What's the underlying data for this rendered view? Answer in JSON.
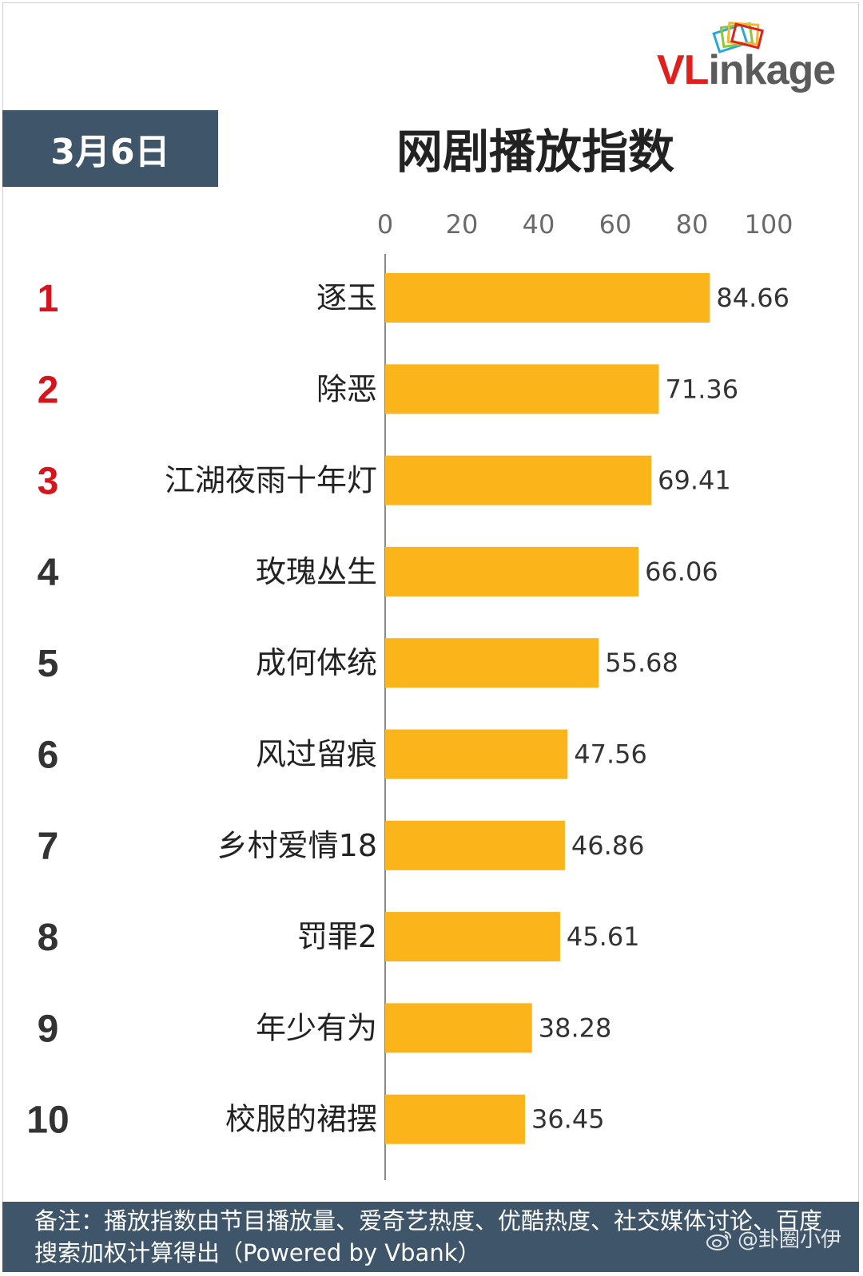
{
  "brand": {
    "logo_text_red": "VL",
    "logo_text_grey": "inkage",
    "accent_red": "#e0201c",
    "grey": "#5b5b5b"
  },
  "header": {
    "date": "3月6日",
    "title": "网剧播放指数",
    "badge_color": "#3f5569"
  },
  "chart_data": {
    "type": "bar",
    "orientation": "horizontal",
    "title": "网剧播放指数",
    "xlim": [
      0,
      100
    ],
    "x_ticks": [
      0,
      20,
      40,
      60,
      80,
      100
    ],
    "grid": false,
    "bar_color": "#fbb41a",
    "ranks": [
      "1",
      "2",
      "3",
      "4",
      "5",
      "6",
      "7",
      "8",
      "9",
      "10"
    ],
    "rank_colors": [
      "#d7141c",
      "#d7141c",
      "#d7141c",
      "#333333",
      "#333333",
      "#333333",
      "#333333",
      "#333333",
      "#333333",
      "#333333"
    ],
    "categories": [
      "逐玉",
      "除恶",
      "江湖夜雨十年灯",
      "玫瑰丛生",
      "成何体统",
      "风过留痕",
      "乡村爱情18",
      "罚罪2",
      "年少有为",
      "校服的裙摆"
    ],
    "values": [
      84.66,
      71.36,
      69.41,
      66.06,
      55.68,
      47.56,
      46.86,
      45.61,
      38.28,
      36.45
    ],
    "value_labels": [
      "84.66",
      "71.36",
      "69.41",
      "66.06",
      "55.68",
      "47.56",
      "46.86",
      "45.61",
      "38.28",
      "36.45"
    ]
  },
  "footer": {
    "note": "备注：播放指数由节目播放量、爱奇艺热度、优酷热度、社交媒体讨论、百度搜索加权计算得出（Powered by Vbank）",
    "watermark": "@卦圈小伊",
    "watermark_icon": "weibo-icon"
  }
}
